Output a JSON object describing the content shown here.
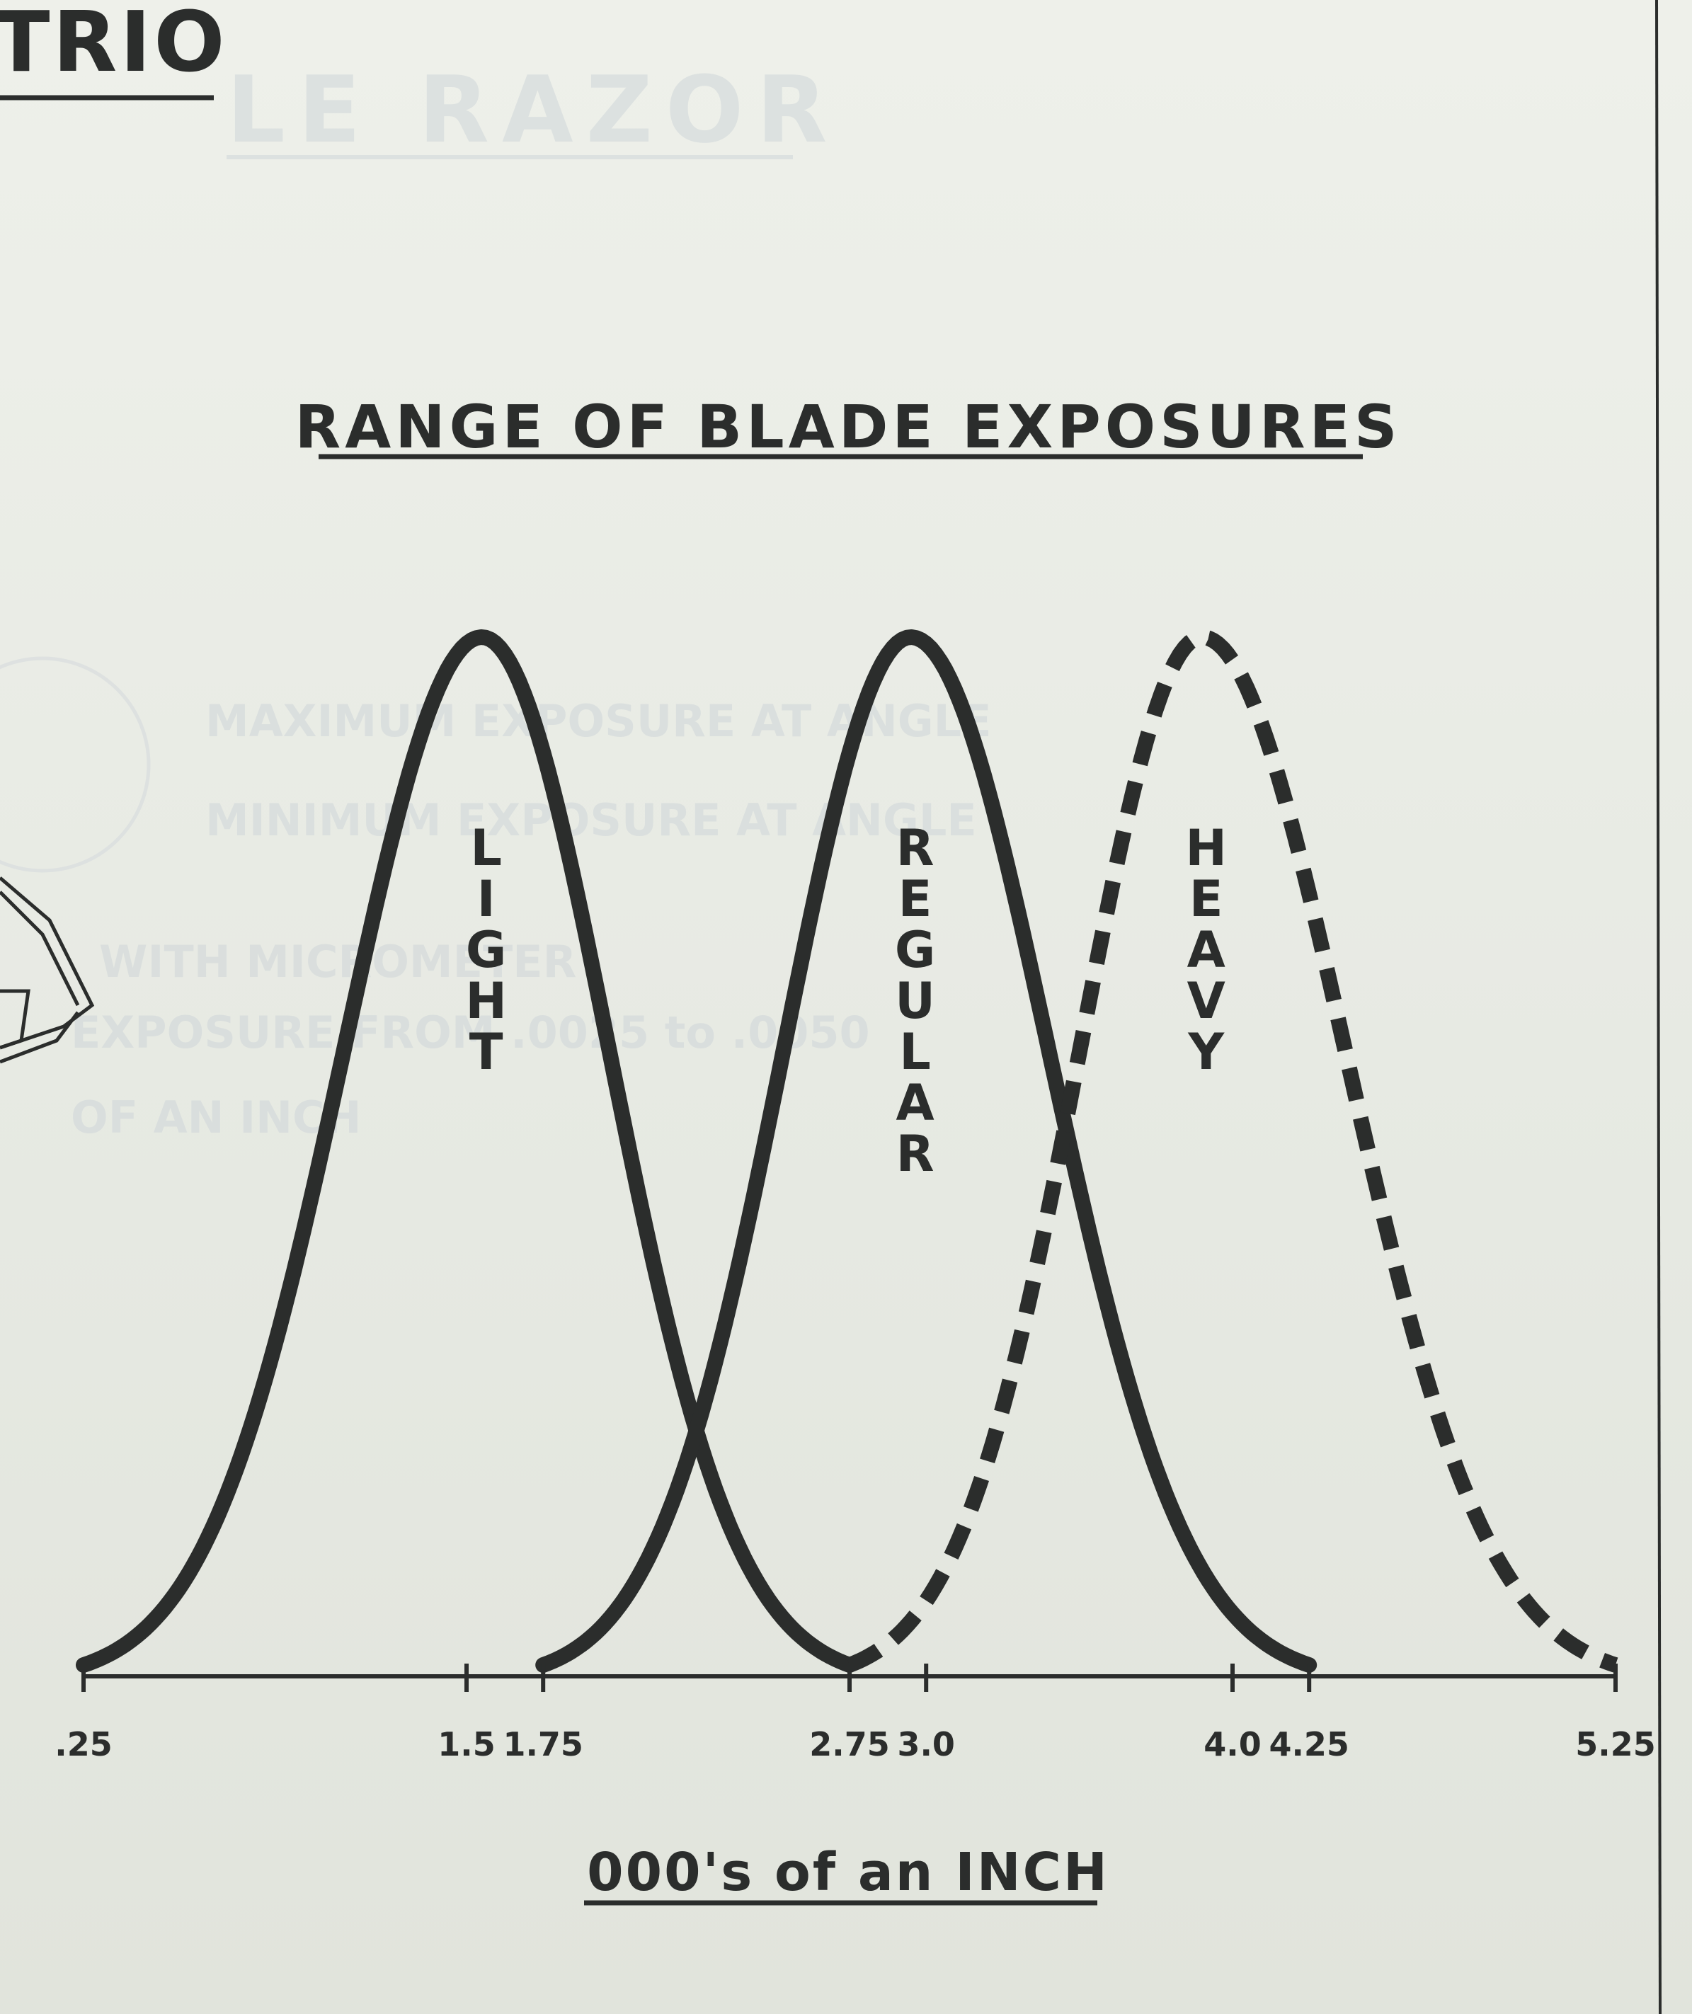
{
  "header": {
    "corner_label": "TRIO",
    "faded_heading": "LE RAZOR"
  },
  "faded_notes": [
    "MAXIMUM EXPOSURE AT ANGLE",
    "MINIMUM EXPOSURE AT ANGLE",
    "WITH MICROMETER",
    "EXPOSURE FROM .0025 to .0050",
    "OF AN INCH"
  ],
  "chart_data": {
    "type": "line",
    "title": "RANGE OF BLADE EXPOSURES",
    "xlabel": "000's of an INCH",
    "ylabel": "",
    "x_ticks": [
      {
        "value": 0.25,
        "label": ".25"
      },
      {
        "value": 1.5,
        "label": "1.5"
      },
      {
        "value": 1.75,
        "label": "1.75"
      },
      {
        "value": 2.75,
        "label": "2.75"
      },
      {
        "value": 3.0,
        "label": "3.0"
      },
      {
        "value": 4.0,
        "label": "4.0"
      },
      {
        "value": 4.25,
        "label": "4.25"
      },
      {
        "value": 5.25,
        "label": "5.25"
      }
    ],
    "xlim": [
      0.25,
      5.25
    ],
    "grid": false,
    "series": [
      {
        "name": "LIGHT",
        "range": [
          0.25,
          2.75
        ],
        "peak": 1.55,
        "style": "solid"
      },
      {
        "name": "REGULAR",
        "range": [
          1.75,
          4.25
        ],
        "peak": 2.95,
        "style": "solid"
      },
      {
        "name": "HEAVY",
        "range": [
          2.75,
          5.25
        ],
        "peak": 3.9,
        "style": "dashed"
      }
    ]
  }
}
